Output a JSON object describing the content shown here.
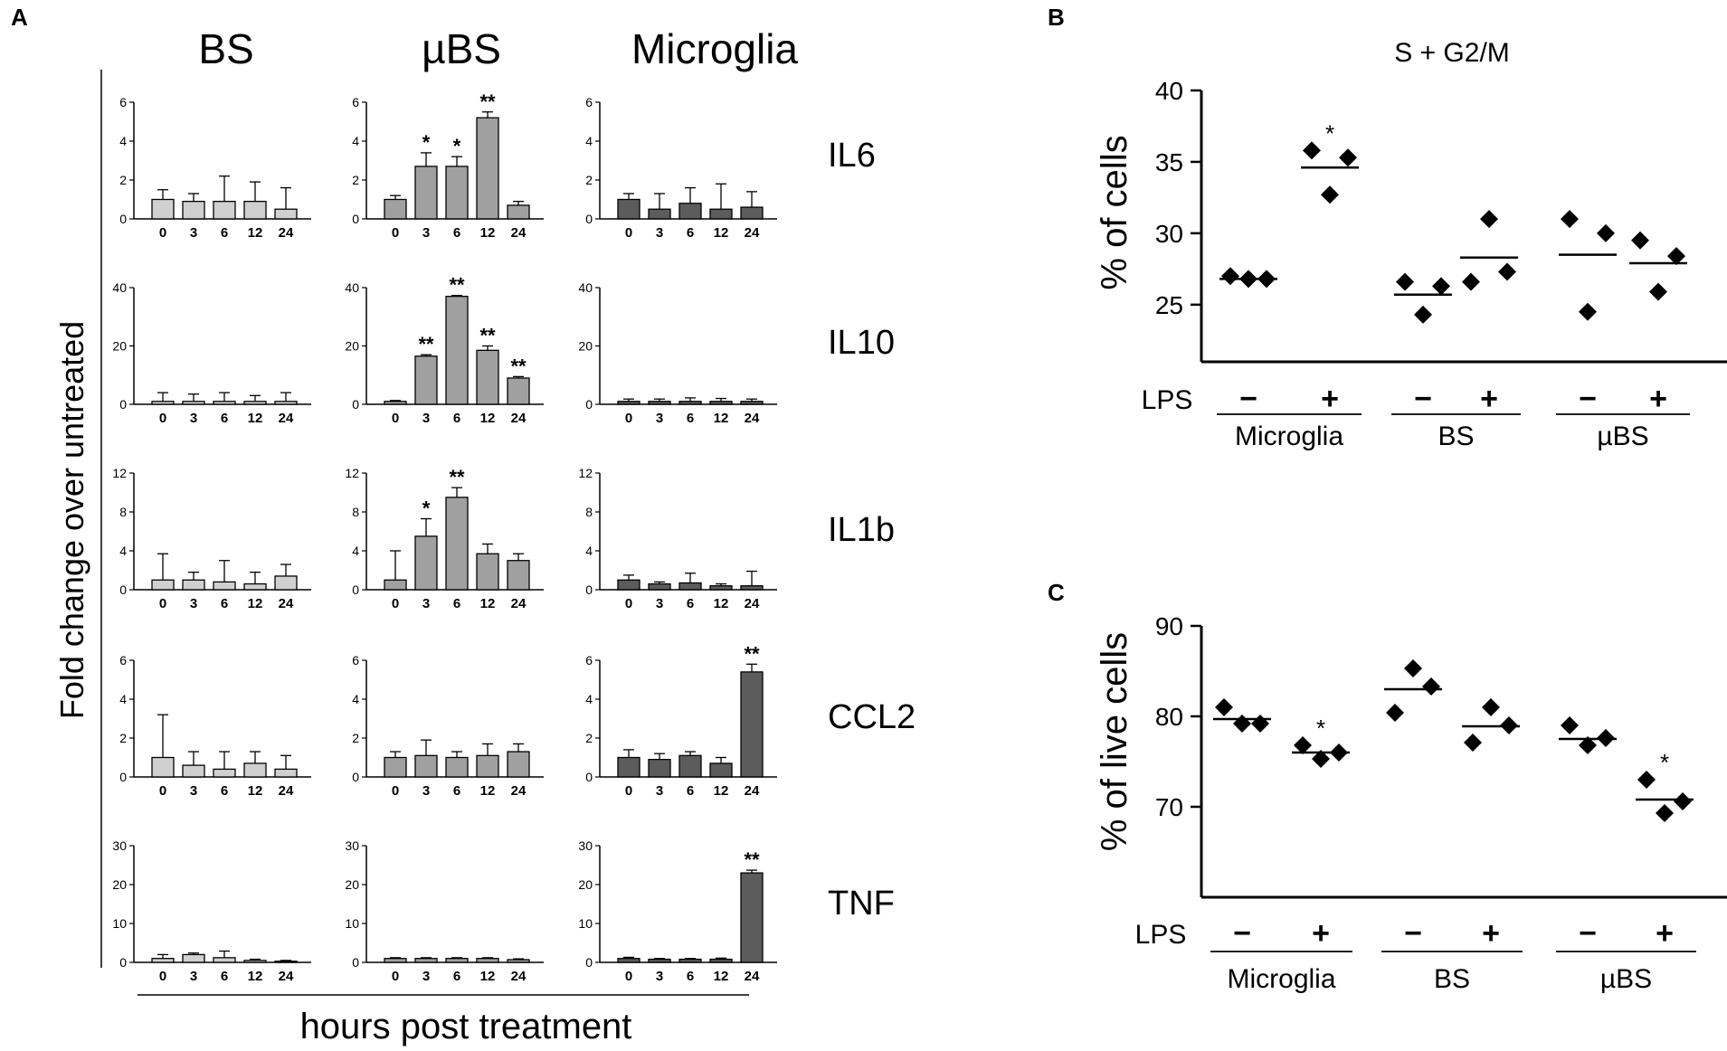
{
  "chart_data": [
    {
      "panel": "A",
      "type": "bar",
      "column_titles": [
        "BS",
        "µBS",
        "Microglia"
      ],
      "ylabel": "Fold change over untreated",
      "xlabel": "hours post treatment",
      "categories": [
        "0",
        "3",
        "6",
        "12",
        "24"
      ],
      "colors": [
        "#d0d0d0",
        "#a0a0a0",
        "#5c5c5c"
      ],
      "rows": [
        {
          "gene": "IL6",
          "ymax": 6,
          "ticks": [
            "0",
            "2",
            "4",
            "6"
          ],
          "series": [
            {
              "name": "BS",
              "values": [
                1.0,
                0.9,
                0.9,
                0.9,
                0.5
              ],
              "errors": [
                0.5,
                0.4,
                1.3,
                1.0,
                1.1
              ],
              "sig": [
                "",
                "",
                "",
                "",
                ""
              ]
            },
            {
              "name": "µBS",
              "values": [
                1.0,
                2.7,
                2.7,
                5.2,
                0.7
              ],
              "errors": [
                0.2,
                0.7,
                0.5,
                0.3,
                0.2
              ],
              "sig": [
                "",
                "*",
                "*",
                "**",
                ""
              ]
            },
            {
              "name": "Microglia",
              "values": [
                1.0,
                0.5,
                0.8,
                0.5,
                0.6
              ],
              "errors": [
                0.3,
                0.8,
                0.8,
                1.3,
                0.8
              ],
              "sig": [
                "",
                "",
                "",
                "",
                ""
              ]
            }
          ]
        },
        {
          "gene": "IL10",
          "ymax": 40,
          "ticks": [
            "0",
            "20",
            "40"
          ],
          "series": [
            {
              "name": "BS",
              "values": [
                1,
                1,
                1,
                1,
                1
              ],
              "errors": [
                3,
                2.5,
                3,
                2,
                3
              ],
              "sig": [
                "",
                "",
                "",
                "",
                ""
              ]
            },
            {
              "name": "µBS",
              "values": [
                1,
                16.5,
                37,
                18.5,
                9
              ],
              "errors": [
                0.3,
                0.5,
                0.3,
                1.5,
                0.5
              ],
              "sig": [
                "",
                "**",
                "**",
                "**",
                "**"
              ]
            },
            {
              "name": "Microglia",
              "values": [
                1,
                1,
                1,
                1,
                1
              ],
              "errors": [
                0.8,
                0.8,
                1.2,
                1,
                0.8
              ],
              "sig": [
                "",
                "",
                "",
                "",
                ""
              ]
            }
          ]
        },
        {
          "gene": "IL1b",
          "ymax": 12,
          "ticks": [
            "0",
            "4",
            "8",
            "12"
          ],
          "series": [
            {
              "name": "BS",
              "values": [
                1.0,
                1.0,
                0.8,
                0.6,
                1.4
              ],
              "errors": [
                2.7,
                0.8,
                2.2,
                1.2,
                1.2
              ],
              "sig": [
                "",
                "",
                "",
                "",
                ""
              ]
            },
            {
              "name": "µBS",
              "values": [
                1.0,
                5.5,
                9.5,
                3.7,
                3.0
              ],
              "errors": [
                3.0,
                1.8,
                1.0,
                1.0,
                0.7
              ],
              "sig": [
                "",
                "*",
                "**",
                "",
                ""
              ]
            },
            {
              "name": "Microglia",
              "values": [
                1.0,
                0.6,
                0.7,
                0.4,
                0.4
              ],
              "errors": [
                0.5,
                0.2,
                1.0,
                0.2,
                1.5
              ],
              "sig": [
                "",
                "",
                "",
                "",
                ""
              ]
            }
          ]
        },
        {
          "gene": "CCL2",
          "ymax": 6,
          "ticks": [
            "0",
            "2",
            "4",
            "6"
          ],
          "series": [
            {
              "name": "BS",
              "values": [
                1.0,
                0.6,
                0.4,
                0.7,
                0.4
              ],
              "errors": [
                2.2,
                0.7,
                0.9,
                0.6,
                0.7
              ],
              "sig": [
                "",
                "",
                "",
                "",
                ""
              ]
            },
            {
              "name": "µBS",
              "values": [
                1.0,
                1.1,
                1.0,
                1.1,
                1.3
              ],
              "errors": [
                0.3,
                0.8,
                0.3,
                0.6,
                0.4
              ],
              "sig": [
                "",
                "",
                "",
                "",
                ""
              ]
            },
            {
              "name": "Microglia",
              "values": [
                1.0,
                0.9,
                1.1,
                0.7,
                5.4
              ],
              "errors": [
                0.4,
                0.3,
                0.2,
                0.3,
                0.4
              ],
              "sig": [
                "",
                "",
                "",
                "",
                "**"
              ]
            }
          ]
        },
        {
          "gene": "TNF",
          "ymax": 30,
          "ticks": [
            "0",
            "10",
            "20",
            "30"
          ],
          "series": [
            {
              "name": "BS",
              "values": [
                1.0,
                2.0,
                1.2,
                0.5,
                0.3
              ],
              "errors": [
                1.0,
                0.4,
                1.7,
                0.3,
                0.2
              ],
              "sig": [
                "",
                "",
                "",
                "",
                ""
              ]
            },
            {
              "name": "µBS",
              "values": [
                1.0,
                1.0,
                1.0,
                1.0,
                0.7
              ],
              "errors": [
                0.2,
                0.2,
                0.2,
                0.2,
                0.2
              ],
              "sig": [
                "",
                "",
                "",
                "",
                ""
              ]
            },
            {
              "name": "Microglia",
              "values": [
                1.0,
                0.8,
                0.8,
                0.8,
                23.0
              ],
              "errors": [
                0.3,
                0.2,
                0.2,
                0.3,
                0.7
              ],
              "sig": [
                "",
                "",
                "",
                "",
                "**"
              ]
            }
          ]
        }
      ]
    },
    {
      "panel": "B",
      "type": "scatter",
      "title": "S + G2/M",
      "ylabel": "% of cells",
      "ylim": [
        21,
        40
      ],
      "ticks": [
        25,
        30,
        35,
        40
      ],
      "lps_label": "LPS",
      "group_labels": [
        "Microglia",
        "BS",
        "µBS"
      ],
      "treatments": [
        "−",
        "+",
        "−",
        "+",
        "−",
        "+"
      ],
      "points": [
        [
          27.0,
          26.8,
          26.8
        ],
        [
          35.8,
          32.7,
          35.3
        ],
        [
          26.6,
          24.3,
          26.3
        ],
        [
          26.6,
          31.0,
          27.3
        ],
        [
          31.0,
          24.5,
          30.0
        ],
        [
          29.5,
          25.9,
          28.4
        ]
      ],
      "means": [
        26.8,
        34.6,
        25.7,
        28.3,
        28.5,
        27.9
      ],
      "sig": [
        "",
        "*",
        "",
        "",
        "",
        ""
      ]
    },
    {
      "panel": "C",
      "type": "scatter",
      "ylabel": "% of live cells",
      "ylim": [
        60,
        90
      ],
      "ticks": [
        70,
        80,
        90
      ],
      "lps_label": "LPS",
      "group_labels": [
        "Microglia",
        "BS",
        "µBS"
      ],
      "treatments": [
        "−",
        "+",
        "−",
        "+",
        "−",
        "+"
      ],
      "points": [
        [
          81.0,
          79.2,
          79.2
        ],
        [
          76.8,
          75.3,
          76.0
        ],
        [
          80.4,
          85.3,
          83.3
        ],
        [
          77.1,
          81.0,
          79.0
        ],
        [
          79.0,
          76.8,
          77.6
        ],
        [
          73.0,
          69.3,
          70.6
        ]
      ],
      "means": [
        79.7,
        76.0,
        83.0,
        78.9,
        77.5,
        70.8
      ],
      "sig": [
        "",
        "*",
        "",
        "",
        "",
        "*"
      ]
    }
  ],
  "panel_letters": {
    "a": "A",
    "b": "B",
    "c": "C"
  }
}
